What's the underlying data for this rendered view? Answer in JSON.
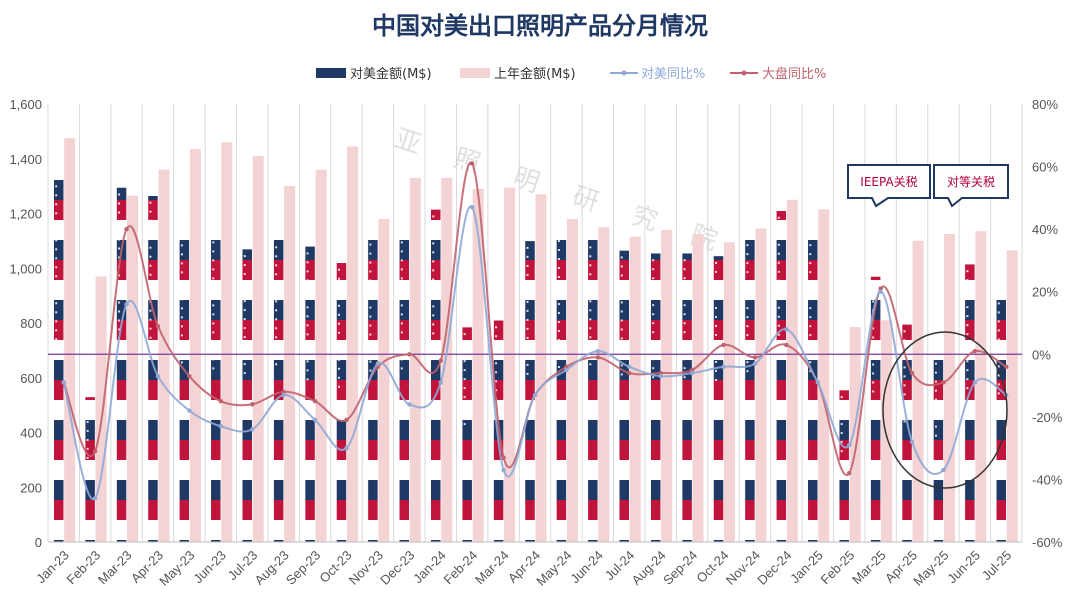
{
  "chart_data": {
    "type": "bar",
    "title": "中国对美出口照明产品分月情况",
    "categories": [
      "Jan-23",
      "Feb-23",
      "Mar-23",
      "Apr-23",
      "May-23",
      "Jun-23",
      "Jul-23",
      "Aug-23",
      "Sep-23",
      "Oct-23",
      "Nov-23",
      "Dec-23",
      "Jan-24",
      "Feb-24",
      "Mar-24",
      "Apr-24",
      "May-24",
      "Jun-24",
      "Jul-24",
      "Aug-24",
      "Sep-24",
      "Oct-24",
      "Nov-24",
      "Dec-24",
      "Jan-25",
      "Feb-25",
      "Mar-25",
      "Apr-25",
      "May-25",
      "Jun-25",
      "Jul-25"
    ],
    "y_left": {
      "lim": [
        0,
        1600
      ],
      "ticks": [
        "0",
        "200",
        "400",
        "600",
        "800",
        "1,000",
        "1,200",
        "1,400",
        "1,600"
      ],
      "tick_values": [
        0,
        200,
        400,
        600,
        800,
        1000,
        1200,
        1400,
        1600
      ]
    },
    "y_right": {
      "lim": [
        -60,
        80
      ],
      "ticks": [
        "-60%",
        "-40%",
        "-20%",
        "0%",
        "20%",
        "40%",
        "60%",
        "80%"
      ],
      "tick_values": [
        -60,
        -40,
        -20,
        0,
        20,
        40,
        60,
        80
      ]
    },
    "series": [
      {
        "name": "对美金额(M$)",
        "kind": "bar",
        "axis": "left",
        "color": "#1f3864",
        "values": [
          1325,
          530,
          1295,
          1265,
          1175,
          1120,
          1070,
          1135,
          1080,
          1020,
          1145,
          1120,
          1215,
          785,
          810,
          1100,
          1125,
          1135,
          1065,
          1055,
          1055,
          1045,
          1110,
          1210,
          1110,
          555,
          970,
          795,
          710,
          1015,
          930
        ]
      },
      {
        "name": "上年金额(M$)",
        "kind": "bar",
        "axis": "left",
        "color": "#f3d3d3",
        "values": [
          1475,
          970,
          1265,
          1360,
          1435,
          1460,
          1410,
          1300,
          1360,
          1445,
          1180,
          1330,
          1330,
          1290,
          1295,
          1270,
          1180,
          1150,
          1115,
          1140,
          1125,
          1095,
          1145,
          1250,
          1215,
          785,
          810,
          1100,
          1125,
          1135,
          1065
        ]
      },
      {
        "name": "对美同比%",
        "kind": "line",
        "axis": "right",
        "color": "#8fa8d6",
        "values": [
          -9,
          -46,
          16,
          -7,
          -18,
          -23,
          -24,
          -13,
          -21,
          -30,
          -3,
          -16,
          -9,
          47,
          -37,
          -13,
          -5,
          1,
          -4,
          -7,
          -6,
          -4,
          -3,
          8,
          -9,
          -29,
          20,
          -28,
          -37,
          -9,
          -13
        ]
      },
      {
        "name": "大盘同比%",
        "kind": "line",
        "axis": "right",
        "color": "#c0626e",
        "values": [
          -9,
          -31,
          40,
          9,
          -7,
          -15,
          -16,
          -12,
          -15,
          -21,
          -4,
          0,
          -2,
          61,
          -33,
          -13,
          -4,
          -1,
          -6,
          -6,
          -5,
          3,
          -1,
          3,
          -9,
          -38,
          21,
          -6,
          -9,
          1,
          -4
        ]
      }
    ],
    "annotations": [
      {
        "text": "IEEPA关税",
        "color": "#b0003a"
      },
      {
        "text": "对等关税",
        "color": "#b0003a"
      }
    ],
    "legend_position": "top",
    "grid": true,
    "reference_line_color": "#7a3a9a",
    "watermark_text": "亚 照 明 研 究 院"
  }
}
